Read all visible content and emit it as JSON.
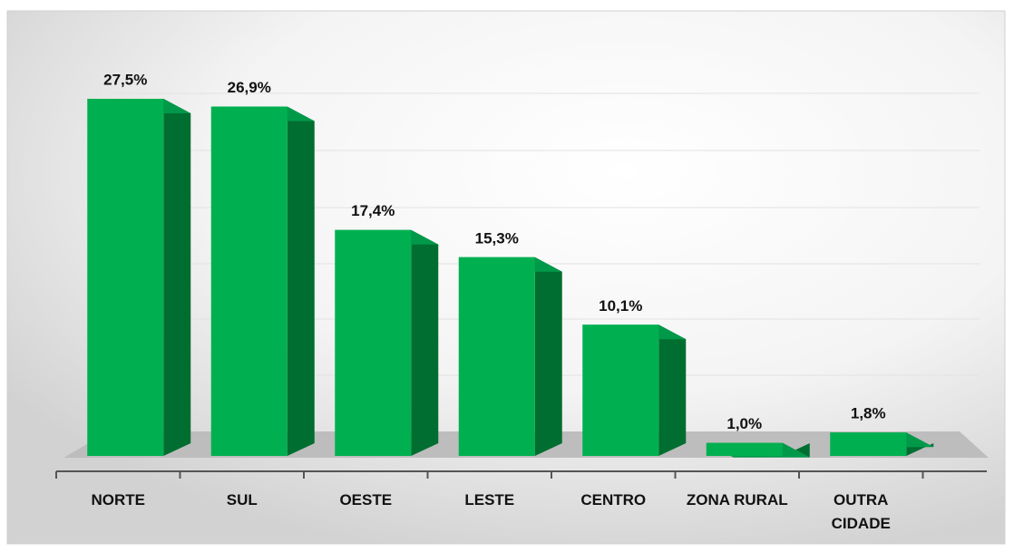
{
  "chart_data": {
    "type": "bar3d",
    "categories": [
      "NORTE",
      "SUL",
      "OESTE",
      "LESTE",
      "CENTRO",
      "ZONA RURAL",
      "OUTRA CIDADE"
    ],
    "values": [
      27.5,
      26.9,
      17.4,
      15.3,
      10.1,
      1.0,
      1.8
    ],
    "value_labels": [
      "27,5%",
      "26,9%",
      "17,4%",
      "15,3%",
      "10,1%",
      "1,0%",
      "1,8%"
    ],
    "color": "#00b050"
  }
}
